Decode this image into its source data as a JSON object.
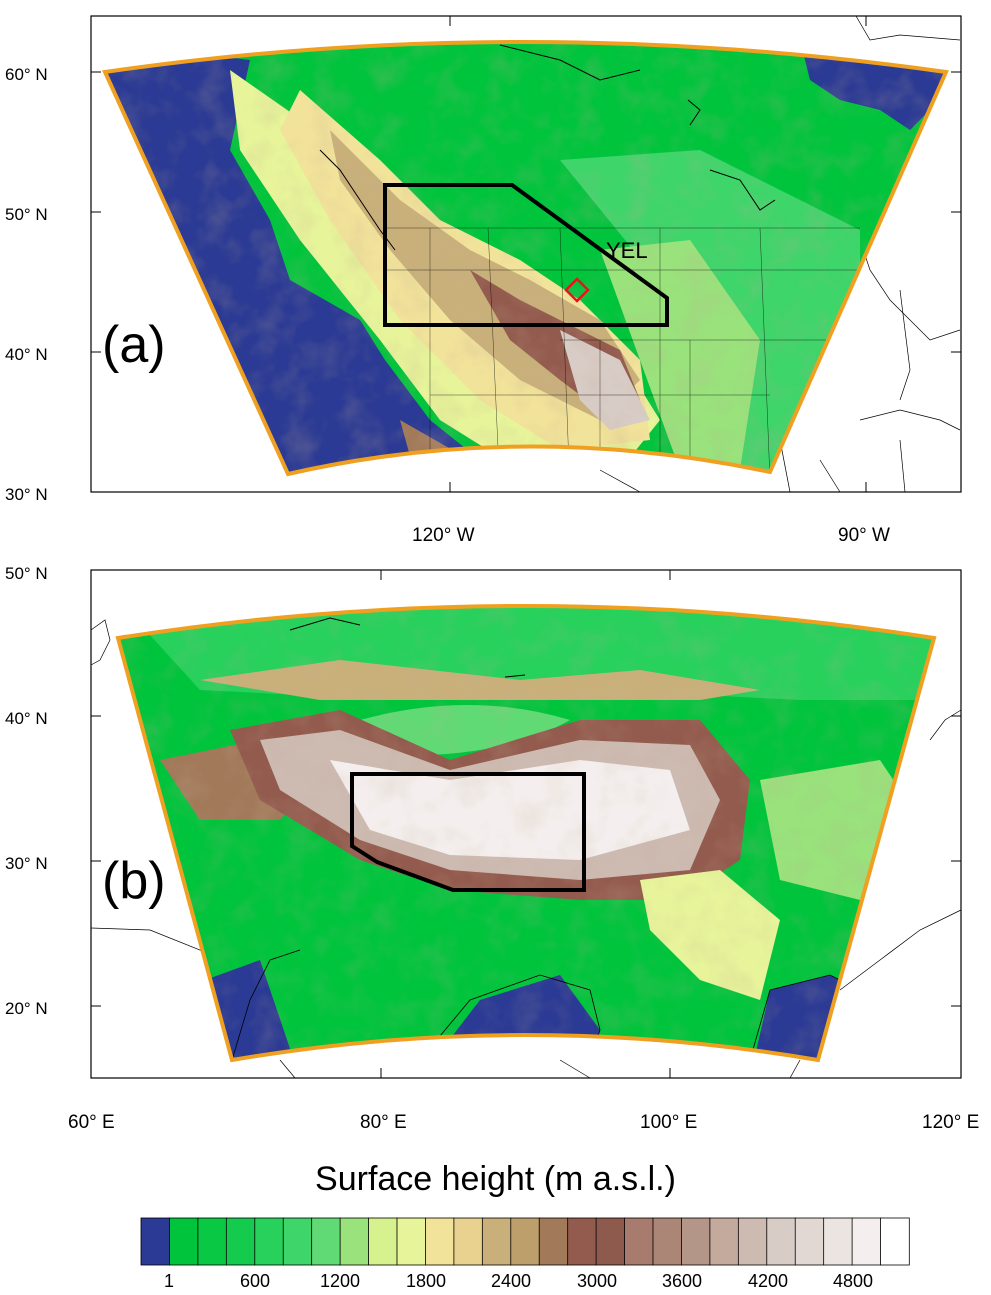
{
  "panel_a": {
    "label": "(a)",
    "lat_ticks": [
      "60° N",
      "50° N",
      "40° N",
      "30° N"
    ],
    "lon_ticks": [
      "120° W",
      "90° W"
    ],
    "site_label": "YEL"
  },
  "panel_b": {
    "label": "(b)",
    "lat_ticks": [
      "50° N",
      "40° N",
      "30° N",
      "20° N"
    ],
    "lon_ticks": [
      "60° E",
      "80° E",
      "100° E",
      "120° E"
    ]
  },
  "colorbar": {
    "title": "Surface height (m a.s.l.)",
    "labels": [
      "1",
      "600",
      "1200",
      "1800",
      "2400",
      "3000",
      "3600",
      "4200",
      "4800"
    ],
    "colors": [
      "#2b3a94",
      "#00c43c",
      "#09c844",
      "#14cb4e",
      "#27d15c",
      "#3ed56a",
      "#60da74",
      "#99e27c",
      "#d6f28e",
      "#e7f49a",
      "#f2e39a",
      "#e9d28f",
      "#c9b07a",
      "#bd9f6c",
      "#a27a5a",
      "#935b4e",
      "#8e5a4d",
      "#a77b6d",
      "#ab8677",
      "#b39688",
      "#c3aa9d",
      "#cdbab1",
      "#d8ccc6",
      "#e1d7d3",
      "#ebe4e1",
      "#f4efee",
      "#ffffff"
    ]
  },
  "legend_colors": {
    "ocean": "#2b3a94",
    "lowland": "#00c43c",
    "domain_border": "#f0a020",
    "site_marker": "#e8141c"
  }
}
